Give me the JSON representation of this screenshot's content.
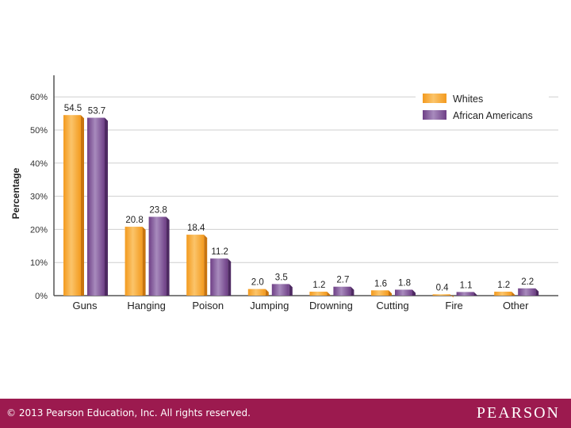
{
  "chart_data": {
    "type": "bar",
    "ylabel": "Percentage",
    "ylim": [
      0,
      65
    ],
    "yticks": [
      0,
      10,
      20,
      30,
      40,
      50,
      60
    ],
    "ytick_suffix": "%",
    "categories": [
      "Guns",
      "Hanging",
      "Poison",
      "Jumping",
      "Drowning",
      "Cutting",
      "Fire",
      "Other"
    ],
    "series": [
      {
        "name": "Whites",
        "color": "#f39a1e",
        "values": [
          54.5,
          20.8,
          18.4,
          2.0,
          1.2,
          1.6,
          0.4,
          1.2
        ]
      },
      {
        "name": "African Americans",
        "color": "#6e3f86",
        "values": [
          53.7,
          23.8,
          11.2,
          3.5,
          2.7,
          1.8,
          1.1,
          2.2
        ]
      }
    ],
    "value_labels": [
      [
        "54.5",
        "20.8",
        "18.4",
        "2.0",
        "1.2",
        "1.6",
        "0.4",
        "1.2"
      ],
      [
        "53.7",
        "23.8",
        "11.2",
        "3.5",
        "2.7",
        "1.8",
        "1.1",
        "2.2"
      ]
    ],
    "grid": true,
    "legend": "top-right"
  },
  "footer": {
    "copyright": "© 2013  Pearson Education, Inc. All rights reserved.",
    "brand": "PEARSON"
  }
}
